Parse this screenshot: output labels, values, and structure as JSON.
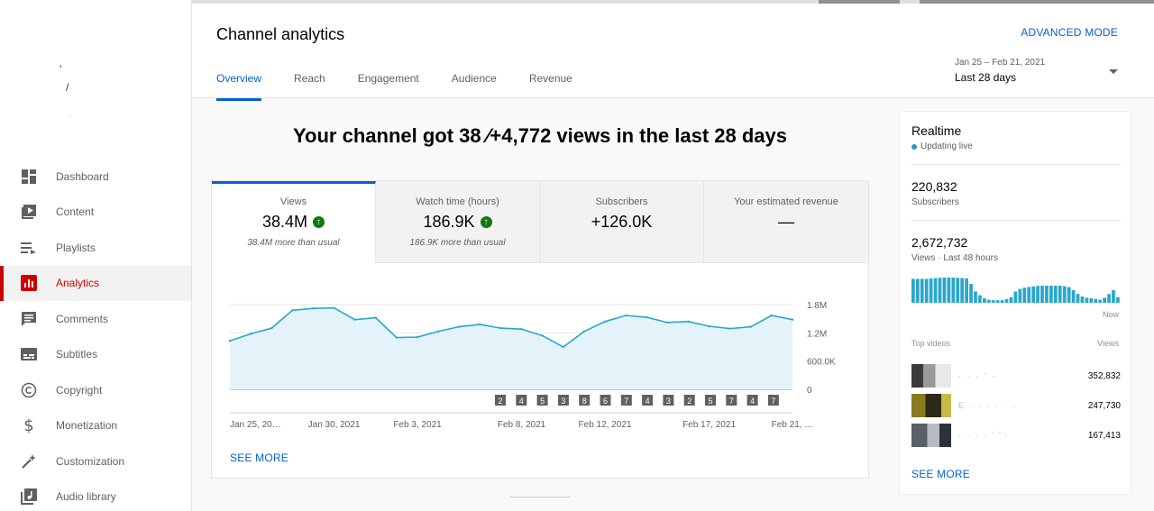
{
  "sidebar": {
    "items": [
      {
        "label": "Dashboard",
        "icon": "dashboard-icon",
        "active": false
      },
      {
        "label": "Content",
        "icon": "content-icon",
        "active": false
      },
      {
        "label": "Playlists",
        "icon": "playlists-icon",
        "active": false
      },
      {
        "label": "Analytics",
        "icon": "analytics-icon",
        "active": true
      },
      {
        "label": "Comments",
        "icon": "comments-icon",
        "active": false
      },
      {
        "label": "Subtitles",
        "icon": "subtitles-icon",
        "active": false
      },
      {
        "label": "Copyright",
        "icon": "copyright-icon",
        "active": false
      },
      {
        "label": "Monetization",
        "icon": "monetization-icon",
        "active": false
      },
      {
        "label": "Customization",
        "icon": "customization-icon",
        "active": false
      },
      {
        "label": "Audio library",
        "icon": "audio-library-icon",
        "active": false
      }
    ]
  },
  "header": {
    "title": "Channel analytics",
    "advanced_mode": "ADVANCED MODE",
    "tabs": [
      {
        "label": "Overview"
      },
      {
        "label": "Reach"
      },
      {
        "label": "Engagement"
      },
      {
        "label": "Audience"
      },
      {
        "label": "Revenue"
      }
    ],
    "date_range": {
      "dates": "Jan 25 – Feb 21, 2021",
      "period": "Last 28 days"
    }
  },
  "main": {
    "headline": "Your channel got 38 ⁄+4,772 views in the last 28 days",
    "metrics": [
      {
        "label": "Views",
        "value": "38.4M",
        "note": "38.4M more than usual",
        "up": true
      },
      {
        "label": "Watch time (hours)",
        "value": "186.9K",
        "note": "186.9K more than usual",
        "up": true
      },
      {
        "label": "Subscribers",
        "value": "+126.0K",
        "note": "",
        "up": false
      },
      {
        "label": "Your estimated revenue",
        "value": "—",
        "note": "",
        "up": false
      }
    ],
    "see_more": "SEE MORE"
  },
  "chart_data": {
    "type": "area",
    "y_ticks": [
      "1.8M",
      "1.2M",
      "600.0K",
      "0"
    ],
    "ylim": [
      0,
      1800000
    ],
    "x_labels": [
      "Jan 25, 20…",
      "Jan 30, 2021",
      "Feb 3, 2021",
      "Feb 8, 2021",
      "Feb 12, 2021",
      "Feb 17, 2021",
      "Feb 21, …"
    ],
    "x_label_days": [
      0,
      5,
      9,
      14,
      18,
      23,
      27
    ],
    "values": [
      1030000,
      1180000,
      1300000,
      1680000,
      1720000,
      1730000,
      1480000,
      1520000,
      1100000,
      1110000,
      1230000,
      1330000,
      1380000,
      1300000,
      1280000,
      1140000,
      900000,
      1230000,
      1440000,
      1570000,
      1530000,
      1420000,
      1440000,
      1340000,
      1290000,
      1330000,
      1570000,
      1480000
    ],
    "markers": [
      "2",
      "4",
      "5",
      "3",
      "8",
      "6",
      "7",
      "4",
      "3",
      "2",
      "5",
      "7",
      "4",
      "7"
    ],
    "color": "#2ba6cb",
    "fill": "#e3f3f9"
  },
  "realtime": {
    "title": "Realtime",
    "live": "Updating live",
    "subscribers_value": "220,832",
    "subscribers_label": "Subscribers",
    "views_value": "2,672,732",
    "views_label": "Views · Last 48 hours",
    "now_label": "Now",
    "top_videos_label": "Top videos",
    "views_col_label": "Views",
    "videos": [
      {
        "title": "·  ·  ·  ‘ ·",
        "views": "352,832"
      },
      {
        "title": "E ·  ·  ·  ·  ·  ·",
        "views": "247,730"
      },
      {
        "title": "·  ·  ·  ·  ‘ ̃ ·",
        "views": "167,413"
      }
    ],
    "spark": [
      0.95,
      0.95,
      0.95,
      0.95,
      0.97,
      0.98,
      0.99,
      1.0,
      1.0,
      1.0,
      0.99,
      0.98,
      0.97,
      0.75,
      0.45,
      0.3,
      0.18,
      0.12,
      0.1,
      0.1,
      0.1,
      0.15,
      0.22,
      0.45,
      0.55,
      0.6,
      0.63,
      0.65,
      0.67,
      0.68,
      0.68,
      0.68,
      0.68,
      0.68,
      0.66,
      0.62,
      0.5,
      0.35,
      0.25,
      0.2,
      0.18,
      0.15,
      0.12,
      0.2,
      0.35,
      0.5,
      0.22
    ],
    "spark_color": "#2ba6cb",
    "see_more": "SEE MORE"
  }
}
